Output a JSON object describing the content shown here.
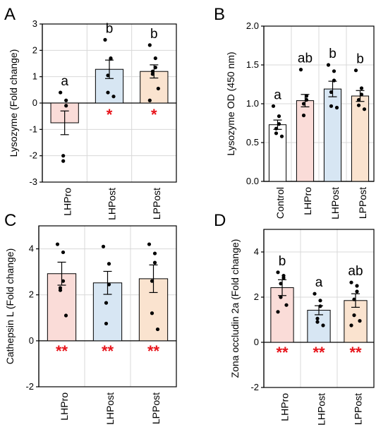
{
  "colors": {
    "LHPro": "#fadcd8",
    "LHPost": "#d7e6f3",
    "LPPost": "#fae3cf",
    "Control": "#ffffff",
    "star": "#e8141b"
  },
  "chart_data": [
    {
      "panel": "A",
      "type": "bar",
      "ylabel": "Lysozyme (Fold change)",
      "ylim": [
        -3,
        3
      ],
      "yticks": [
        "-3",
        "-2",
        "-1",
        "0",
        "1",
        "2",
        "3"
      ],
      "grid": true,
      "categories": [
        "LHPro",
        "LHPost",
        "LPPost"
      ],
      "values": [
        -0.75,
        1.28,
        1.2
      ],
      "errors": [
        0.45,
        0.35,
        0.25
      ],
      "letters": [
        "a",
        "b",
        "b"
      ],
      "stars": [
        "",
        "*",
        "*"
      ],
      "points": [
        [
          0.4,
          0.1,
          -0.1,
          -2.0,
          -2.2
        ],
        [
          2.4,
          1.7,
          1.68,
          1.05,
          0.4,
          0.25
        ],
        [
          2.2,
          1.7,
          1.35,
          1.2,
          1.1,
          0.55,
          0.1
        ]
      ]
    },
    {
      "panel": "B",
      "type": "bar",
      "ylabel": "Lysozyme OD (450 nm)",
      "ylim": [
        0,
        2
      ],
      "yticks": [
        "0.0",
        "0.5",
        "1.0",
        "1.5",
        "2.0"
      ],
      "grid": true,
      "categories": [
        "Control",
        "LHPro",
        "LHPost",
        "LPPost"
      ],
      "values": [
        0.73,
        1.04,
        1.19,
        1.1
      ],
      "errors": [
        0.06,
        0.08,
        0.1,
        0.07
      ],
      "letters": [
        "a",
        "ab",
        "b",
        "b"
      ],
      "stars": [
        "",
        "",
        "",
        ""
      ],
      "points": [
        [
          0.97,
          0.84,
          0.74,
          0.68,
          0.62,
          0.58
        ],
        [
          1.44,
          1.1,
          1.05,
          1.0,
          0.85
        ],
        [
          1.5,
          1.42,
          1.3,
          1.15,
          0.97,
          0.95
        ],
        [
          1.43,
          1.2,
          1.12,
          1.05,
          0.98,
          0.93
        ]
      ]
    },
    {
      "panel": "C",
      "type": "bar",
      "ylabel": "Cathepsin L (Fold change)",
      "ylim": [
        -2,
        5
      ],
      "yticks": [
        "-2",
        "0",
        "2",
        "4"
      ],
      "grid": true,
      "categories": [
        "LHPro",
        "LHPost",
        "LPPost"
      ],
      "values": [
        2.92,
        2.52,
        2.7
      ],
      "errors": [
        0.5,
        0.5,
        0.6
      ],
      "letters": [
        "",
        "",
        ""
      ],
      "stars": [
        "**",
        "**",
        "**"
      ],
      "points": [
        [
          4.2,
          3.85,
          2.6,
          2.3,
          2.2,
          1.1
        ],
        [
          4.1,
          3.35,
          2.45,
          1.65,
          0.75
        ],
        [
          4.2,
          3.8,
          3.4,
          2.6,
          1.2,
          0.5
        ]
      ]
    },
    {
      "panel": "D",
      "type": "bar",
      "ylabel": "Zona occludin 2a (Fold change)",
      "ylim": [
        -2,
        5
      ],
      "yticks": [
        "-2",
        "0",
        "2",
        "4"
      ],
      "grid": true,
      "categories": [
        "LHPro",
        "LHPost",
        "LPPost"
      ],
      "values": [
        2.42,
        1.42,
        1.85
      ],
      "errors": [
        0.35,
        0.2,
        0.3
      ],
      "letters": [
        "b",
        "a",
        "ab"
      ],
      "stars": [
        "**",
        "**",
        "**"
      ],
      "points": [
        [
          3.1,
          2.95,
          2.85,
          2.6,
          2.0,
          1.65,
          1.35
        ],
        [
          2.15,
          1.85,
          1.6,
          1.05,
          0.9,
          0.75
        ],
        [
          2.65,
          2.5,
          2.25,
          1.9,
          1.2,
          0.95,
          0.75
        ]
      ]
    }
  ]
}
